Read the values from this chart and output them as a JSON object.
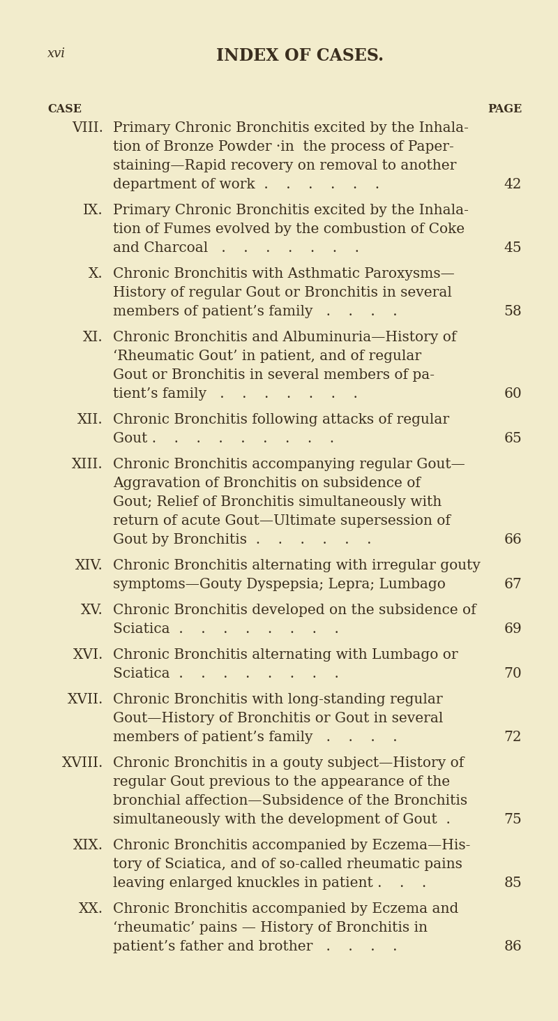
{
  "background_color": "#f2eccc",
  "title": "INDEX OF CASES.",
  "page_label": "xvi",
  "case_label": "CASE",
  "page_header": "PAGE",
  "entries": [
    {
      "case": "VIII.",
      "lines": [
        "Primary Chronic Bronchitis excited by the Inhala-",
        "tion of Bronze Powder ·in  the process of Paper-",
        "staining—Rapid recovery on removal to another",
        "department of work  .    .    .    .    .    .   "
      ],
      "page": "42"
    },
    {
      "case": "IX.",
      "lines": [
        "Primary Chronic Bronchitis excited by the Inhala-",
        "tion of Fumes evolved by the combustion of Coke",
        "and Charcoal   .    .    .    .    .    .    .   "
      ],
      "page": "45"
    },
    {
      "case": "X.",
      "lines": [
        "Chronic Bronchitis with Asthmatic Paroxysms—",
        "History of regular Gout or Bronchitis in several",
        "members of patient’s family   .    .    .    .   "
      ],
      "page": "58"
    },
    {
      "case": "XI.",
      "lines": [
        "Chronic Bronchitis and Albuminuria—History of",
        "‘Rheumatic Gout’ in patient, and of regular",
        "Gout or Bronchitis in several members of pa-",
        "tient’s family   .    .    .    .    .    .    .   "
      ],
      "page": "60"
    },
    {
      "case": "XII.",
      "lines": [
        "Chronic Bronchitis following attacks of regular",
        "Gout .    .    .    .    .    .    .    .    .   "
      ],
      "page": "65"
    },
    {
      "case": "XIII.",
      "lines": [
        "Chronic Bronchitis accompanying regular Gout—",
        "Aggravation of Bronchitis on subsidence of",
        "Gout; Relief of Bronchitis simultaneously with",
        "return of acute Gout—Ultimate supersession of",
        "Gout by Bronchitis  .    .    .    .    .    .   "
      ],
      "page": "66"
    },
    {
      "case": "XIV.",
      "lines": [
        "Chronic Bronchitis alternating with irregular gouty",
        "symptoms—Gouty Dyspepsia; Lepra; Lumbago  "
      ],
      "page": "67"
    },
    {
      "case": "XV.",
      "lines": [
        "Chronic Bronchitis developed on the subsidence of",
        "Sciatica  .    .    .    .    .    .    .    .   "
      ],
      "page": "69"
    },
    {
      "case": "XVI.",
      "lines": [
        "Chronic Bronchitis alternating with Lumbago or",
        "Sciatica  .    .    .    .    .    .    .    .   "
      ],
      "page": "70"
    },
    {
      "case": "XVII.",
      "lines": [
        "Chronic Bronchitis with long-standing regular",
        "Gout—History of Bronchitis or Gout in several",
        "members of patient’s family   .    .    .    .   "
      ],
      "page": "72"
    },
    {
      "case": "XVIII.",
      "lines": [
        "Chronic Bronchitis in a gouty subject—History of",
        "regular Gout previous to the appearance of the",
        "bronchial affection—Subsidence of the Bronchitis",
        "simultaneously with the development of Gout  . "
      ],
      "page": "75"
    },
    {
      "case": "XIX.",
      "lines": [
        "Chronic Bronchitis accompanied by Eczema—His-",
        "tory of Sciatica, and of so-called rheumatic pains",
        "leaving enlarged knuckles in patient .    .    .   "
      ],
      "page": "85"
    },
    {
      "case": "XX.",
      "lines": [
        "Chronic Bronchitis accompanied by Eczema and",
        "‘rheumatic’ pains — History of Bronchitis in",
        "patient’s father and brother   .    .    .    .   "
      ],
      "page": "86"
    }
  ],
  "text_color": "#3a2e1e",
  "title_fontsize": 17,
  "body_fontsize": 14.5,
  "header_fontsize": 11.5,
  "pagelabel_fontsize": 13
}
